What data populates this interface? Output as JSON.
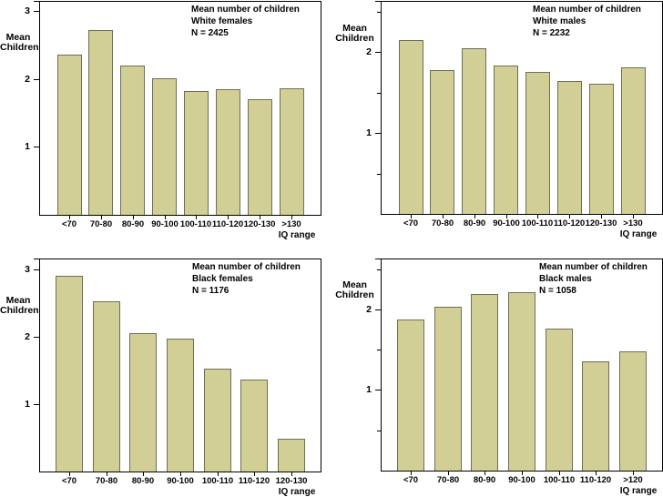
{
  "figure": {
    "background": "#ffffff",
    "bar_fill": "#d2cf96",
    "bar_border": "#6e6e55",
    "axis_color": "#000000",
    "text_color": "#000000"
  },
  "chart_data": [
    {
      "type": "bar",
      "title": "Mean number of children",
      "subtitle": "White females",
      "n_label": "N = 2425",
      "ylabel_line1": "Mean",
      "ylabel_line2": "Children",
      "xlabel": "IQ range",
      "categories": [
        "<70",
        "70-80",
        "80-90",
        "90-100",
        "100-110",
        "110-120",
        "120-130",
        ">130"
      ],
      "values": [
        2.36,
        2.73,
        2.2,
        2.01,
        1.83,
        1.85,
        1.71,
        1.87
      ],
      "ylim": [
        0,
        3.14
      ],
      "yticks_labeled": [
        1,
        2,
        3
      ],
      "yticks_minor": [],
      "grid": false,
      "legend_position": "top-right"
    },
    {
      "type": "bar",
      "title": "Mean number of children",
      "subtitle": "White males",
      "n_label": "N = 2232",
      "ylabel_line1": "Mean",
      "ylabel_line2": "Children",
      "xlabel": "IQ range",
      "categories": [
        "<70",
        "70-80",
        "80-90",
        "90-100",
        "100-110",
        "110-120",
        "120-130",
        ">130"
      ],
      "values": [
        2.15,
        1.78,
        2.05,
        1.83,
        1.75,
        1.64,
        1.61,
        1.81
      ],
      "ylim": [
        0,
        2.62
      ],
      "yticks_labeled": [
        1,
        2
      ],
      "yticks_minor": [
        0.5,
        1.5,
        2.5
      ],
      "grid": false,
      "legend_position": "top-right"
    },
    {
      "type": "bar",
      "title": "Mean number of children",
      "subtitle": "Black females",
      "n_label": "N = 1176",
      "ylabel_line1": "Mean",
      "ylabel_line2": "Children",
      "xlabel": "IQ range",
      "categories": [
        "<70",
        "70-80",
        "80-90",
        "90-100",
        "100-110",
        "110-120",
        "120-130"
      ],
      "values": [
        2.9,
        2.53,
        2.06,
        1.97,
        1.53,
        1.37,
        0.48
      ],
      "ylim": [
        0,
        3.15
      ],
      "yticks_labeled": [
        1,
        2,
        3
      ],
      "yticks_minor": [],
      "grid": false,
      "legend_position": "top-right"
    },
    {
      "type": "bar",
      "title": "Mean number of children",
      "subtitle": "Black males",
      "n_label": "N = 1058",
      "ylabel_line1": "Mean",
      "ylabel_line2": "Children",
      "xlabel": "IQ range",
      "categories": [
        "<70",
        "70-80",
        "80-90",
        "90-100",
        "100-110",
        "110-120",
        ">120"
      ],
      "values": [
        1.88,
        2.03,
        2.19,
        2.21,
        1.76,
        1.36,
        1.48
      ],
      "ylim": [
        0,
        2.62
      ],
      "yticks_labeled": [
        1,
        2
      ],
      "yticks_minor": [
        0.5,
        1.5,
        2.5
      ],
      "grid": false,
      "legend_position": "top-right"
    }
  ]
}
